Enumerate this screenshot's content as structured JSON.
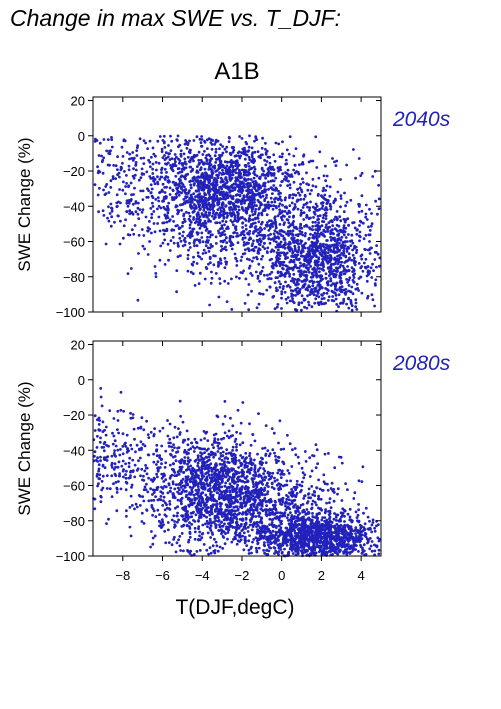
{
  "title": "Change in max SWE vs. T_DJF:",
  "scenario": "A1B",
  "colors": {
    "points": "#2222bb",
    "period_label": "#2222bb"
  },
  "chart_data": [
    {
      "type": "scatter",
      "period": "2040s",
      "xlabel": "",
      "ylabel": "SWE Change (%)",
      "xlim": [
        -9.5,
        5
      ],
      "ylim": [
        -100,
        22
      ],
      "xticks": [
        -8,
        -6,
        -4,
        -2,
        0,
        2,
        4
      ],
      "yticks": [
        -100,
        -80,
        -60,
        -40,
        -20,
        0,
        20
      ],
      "x_tick_labels_shown": false,
      "n_points": 3200,
      "trend": {
        "slope": -3.3,
        "intercept": -48,
        "spread": 20
      },
      "clusters": [
        {
          "x": -3,
          "y": -30,
          "weight": 0.38,
          "sx": 1.6,
          "sy": 15
        },
        {
          "x": 2,
          "y": -72,
          "weight": 0.32,
          "sx": 1.4,
          "sy": 16
        },
        {
          "x": -0.5,
          "y": -50,
          "weight": 0.3,
          "sx": 2.6,
          "sy": 24
        }
      ],
      "x": [],
      "y": []
    },
    {
      "type": "scatter",
      "period": "2080s",
      "xlabel": "T(DJF,degC)",
      "ylabel": "SWE Change (%)",
      "xlim": [
        -9.5,
        5
      ],
      "ylim": [
        -100,
        22
      ],
      "xticks": [
        -8,
        -6,
        -4,
        -2,
        0,
        2,
        4
      ],
      "yticks": [
        -100,
        -80,
        -60,
        -40,
        -20,
        0,
        20
      ],
      "x_tick_labels_shown": true,
      "n_points": 3200,
      "trend": {
        "slope": -3.5,
        "intercept": -75,
        "spread": 16
      },
      "clusters": [
        {
          "x": -3,
          "y": -60,
          "weight": 0.34,
          "sx": 1.6,
          "sy": 15
        },
        {
          "x": 2,
          "y": -90,
          "weight": 0.36,
          "sx": 1.5,
          "sy": 7
        },
        {
          "x": -1,
          "y": -75,
          "weight": 0.3,
          "sx": 2.4,
          "sy": 16
        }
      ],
      "x": [],
      "y": []
    }
  ]
}
